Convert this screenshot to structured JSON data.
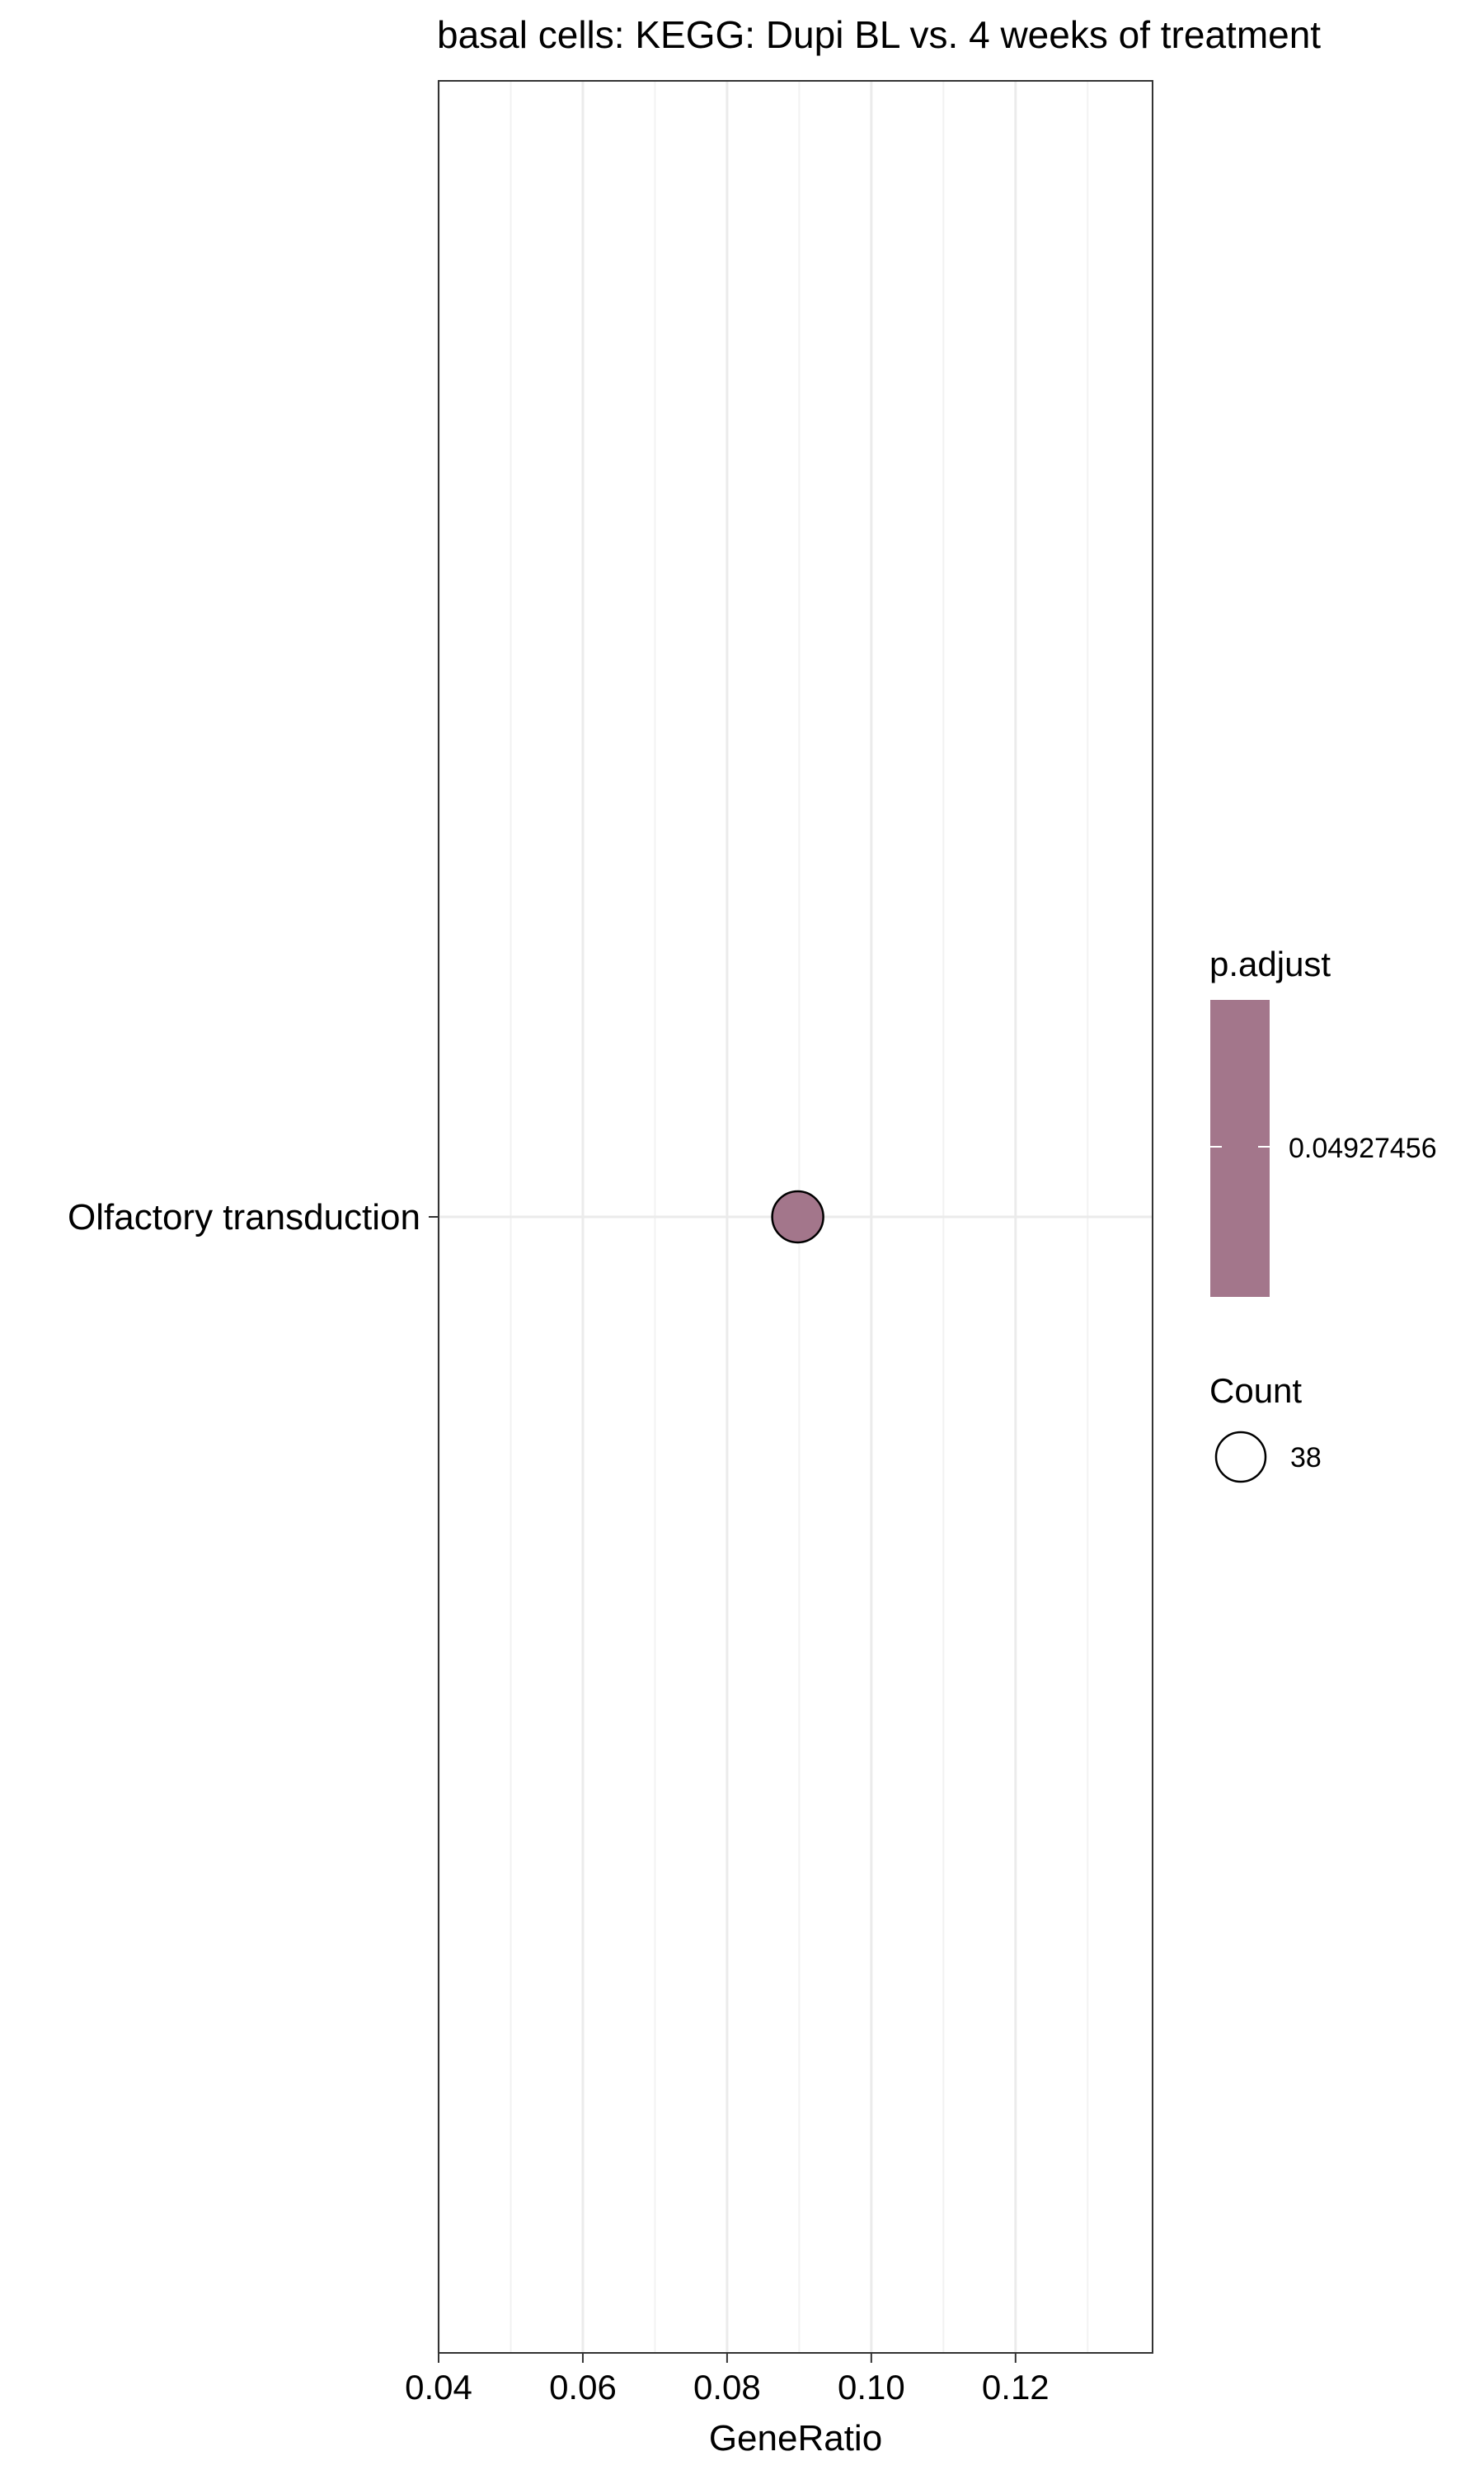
{
  "chart_data": {
    "type": "scatter",
    "title": "basal cells: KEGG: Dupi BL vs. 4 weeks of treatment",
    "xlabel": "GeneRatio",
    "ylabel": "",
    "xlim": [
      0.04,
      0.139
    ],
    "x_ticks": [
      0.04,
      0.06,
      0.08,
      0.1,
      0.12
    ],
    "x_tick_labels": [
      "0.04",
      "0.06",
      "0.08",
      "0.10",
      "0.12"
    ],
    "x_minor_grid": [
      0.05,
      0.07,
      0.09,
      0.11,
      0.13
    ],
    "categories": [
      "Olfactory transduction"
    ],
    "grid": true,
    "points": [
      {
        "category": "Olfactory transduction",
        "x": 0.0898,
        "count": 38,
        "p_adjust": 0.04927456,
        "color": "#a3768b"
      }
    ],
    "legends": {
      "color": {
        "title": "p.adjust",
        "label": "0.04927456",
        "color": "#a3768b",
        "placement": "right"
      },
      "size": {
        "title": "Count",
        "label": "38",
        "placement": "right"
      }
    }
  }
}
